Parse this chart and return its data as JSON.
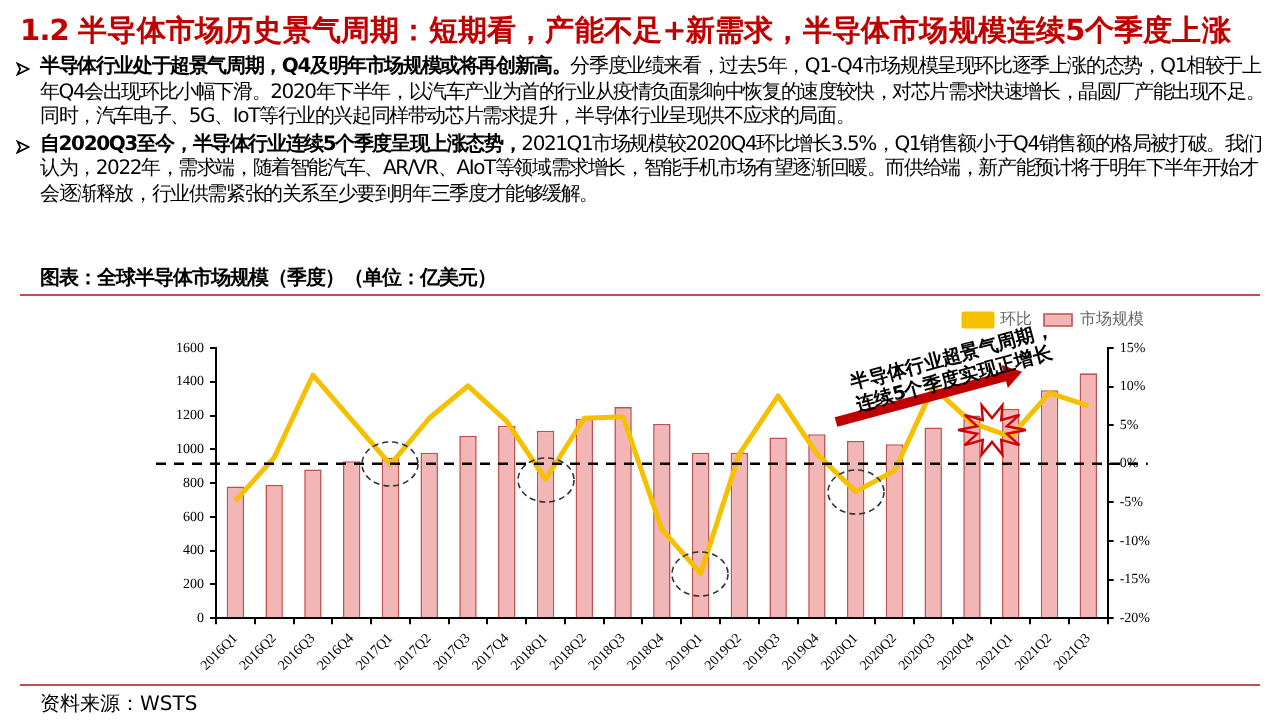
{
  "chart_data": {
    "type": "bar",
    "title": "1.2 半导体市场历史景气周期：短期看，产能不足+新需求，半导体市场规模连续5个季度上涨",
    "subtitle": "图表：全球半导体市场规模（季度）（单位：亿美元）",
    "categories": [
      "2016Q1",
      "2016Q2",
      "2016Q3",
      "2016Q4",
      "2017Q1",
      "2017Q2",
      "2017Q3",
      "2017Q4",
      "2018Q1",
      "2018Q2",
      "2018Q3",
      "2018Q4",
      "2019Q1",
      "2019Q2",
      "2019Q3",
      "2019Q4",
      "2020Q1",
      "2020Q2",
      "2020Q3",
      "2020Q4",
      "2021Q1",
      "2021Q2",
      "2021Q3"
    ],
    "series": [
      {
        "name": "市场规模",
        "color": "#f2b6b6",
        "values": [
          780,
          790,
          880,
          930,
          950,
          980,
          1080,
          1140,
          1110,
          1180,
          1250,
          1150,
          980,
          980,
          1070,
          1090,
          1050,
          1030,
          1130,
          1200,
          1240,
          1350,
          1450
        ]
      },
      {
        "name": "环比",
        "type": "line",
        "axis": "y2",
        "color": "#f5c000",
        "values": [
          -4.8,
          0.8,
          11.5,
          5.7,
          -0.1,
          5.9,
          10.1,
          5.5,
          -2.0,
          5.9,
          6.1,
          -8.5,
          -14.2,
          1.3,
          8.8,
          1.3,
          -3.6,
          -0.9,
          9.9,
          5.3,
          3.5,
          9.2,
          7.5
        ]
      }
    ],
    "ylim": [
      0,
      1600
    ],
    "yticks": [
      0,
      200,
      400,
      600,
      800,
      1000,
      1200,
      1400,
      1600
    ],
    "y2lim": [
      -20,
      15
    ],
    "y2ticks": [
      {
        "value": -20,
        "label": "-20%"
      },
      {
        "value": -15,
        "label": "-15%"
      },
      {
        "value": -10,
        "label": "-10%"
      },
      {
        "value": -5,
        "label": "-5%"
      },
      {
        "value": 0,
        "label": "0%"
      },
      {
        "value": 5,
        "label": "5%"
      },
      {
        "value": 10,
        "label": "10%"
      },
      {
        "value": 15,
        "label": "15%"
      }
    ],
    "ref_lines": [
      {
        "axis": "y2",
        "value": 0,
        "color": "#000000",
        "line_style": "dashed"
      }
    ],
    "legend": "top right",
    "grid": false,
    "marker": "none",
    "annotations": [
      "半导体行业处于超景气周期，Q4及明年市场规模或将再创新高。",
      "分季度业绩来看，过去5年，Q1-Q4市场规模呈现环比逐季上涨的态势，Q1相较于上年Q4会出现环比小幅下滑。2020年下半年，以汽车产业为首的行业从疫情负面影响中恢复的速度较快，对芯片需求快速增长，晶圆厂产能出现不足。同时，汽车电子、5G、IoT等行业的兴起同样带动芯片需求提升，半导体行业呈现供不应求的局面。",
      "自2020Q3至今，半导体行业连续5个季度呈现上涨态势，",
      "2021Q1市场规模较2020Q4环比增长3.5%，Q1销售额小于Q4销售额的格局被打破。我们认为，2022年，需求端，随着智能汽车、AR/VR、AIoT等领域需求增长，智能手机市场有望逐渐回暖。而供给端，新产能预计将于明年下半年开始才会逐渐释放，行业供需紧张的关系至少要到明年三季度才能够缓解。",
      "半导体行业超景气周期，",
      "连续5个季度实现正增长",
      "资料来源：WSTS"
    ]
  }
}
